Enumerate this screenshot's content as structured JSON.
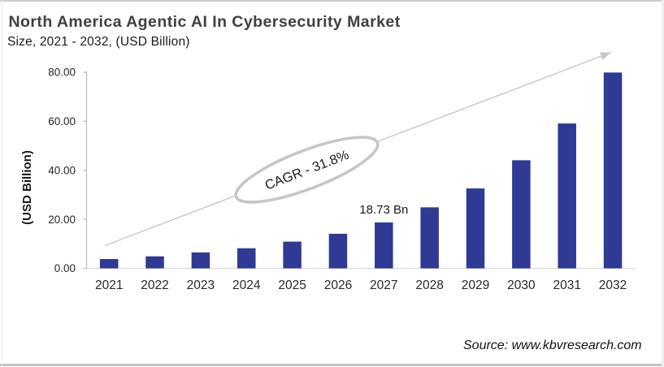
{
  "header": {
    "title": "North America Agentic AI In Cybersecurity Market",
    "subtitle": "Size, 2021 - 2032, (USD Billion)"
  },
  "source_note": "Source: www.kbvresearch.com",
  "chart_data": {
    "type": "bar",
    "title": "North America Agentic AI In Cybersecurity Market",
    "subtitle": "Size, 2021 - 2032, (USD Billion)",
    "categories": [
      "2021",
      "2022",
      "2023",
      "2024",
      "2025",
      "2026",
      "2027",
      "2028",
      "2029",
      "2030",
      "2031",
      "2032"
    ],
    "values": [
      3.8,
      4.9,
      6.5,
      8.2,
      10.9,
      14.1,
      18.73,
      24.9,
      32.6,
      44.1,
      59.1,
      79.9
    ],
    "xlabel": "",
    "ylabel": "(USD Billion)",
    "ylim": [
      0,
      80
    ],
    "ytick_labels": [
      "0.00",
      "20.00",
      "40.00",
      "60.00",
      "80.00"
    ],
    "grid": false,
    "legend": false,
    "bar_color": "#2e3a94",
    "annotations": {
      "bar_label": {
        "category": "2027",
        "text": "18.73 Bn"
      },
      "cagr_badge": {
        "text": "CAGR - 31.8%"
      },
      "trend_arrow": true
    }
  },
  "colors": {
    "bar": "#2e3a94",
    "title_text": "#404040",
    "subtitle_text": "#1a1a1a",
    "axis_text": "#262626",
    "axis_line": "#bfbfbf",
    "baseline": "#d9d9d9",
    "arrow": "#c6c6c6",
    "ellipse_stroke": "#c6c6c6",
    "annotation_text": "#1a1a1a"
  }
}
